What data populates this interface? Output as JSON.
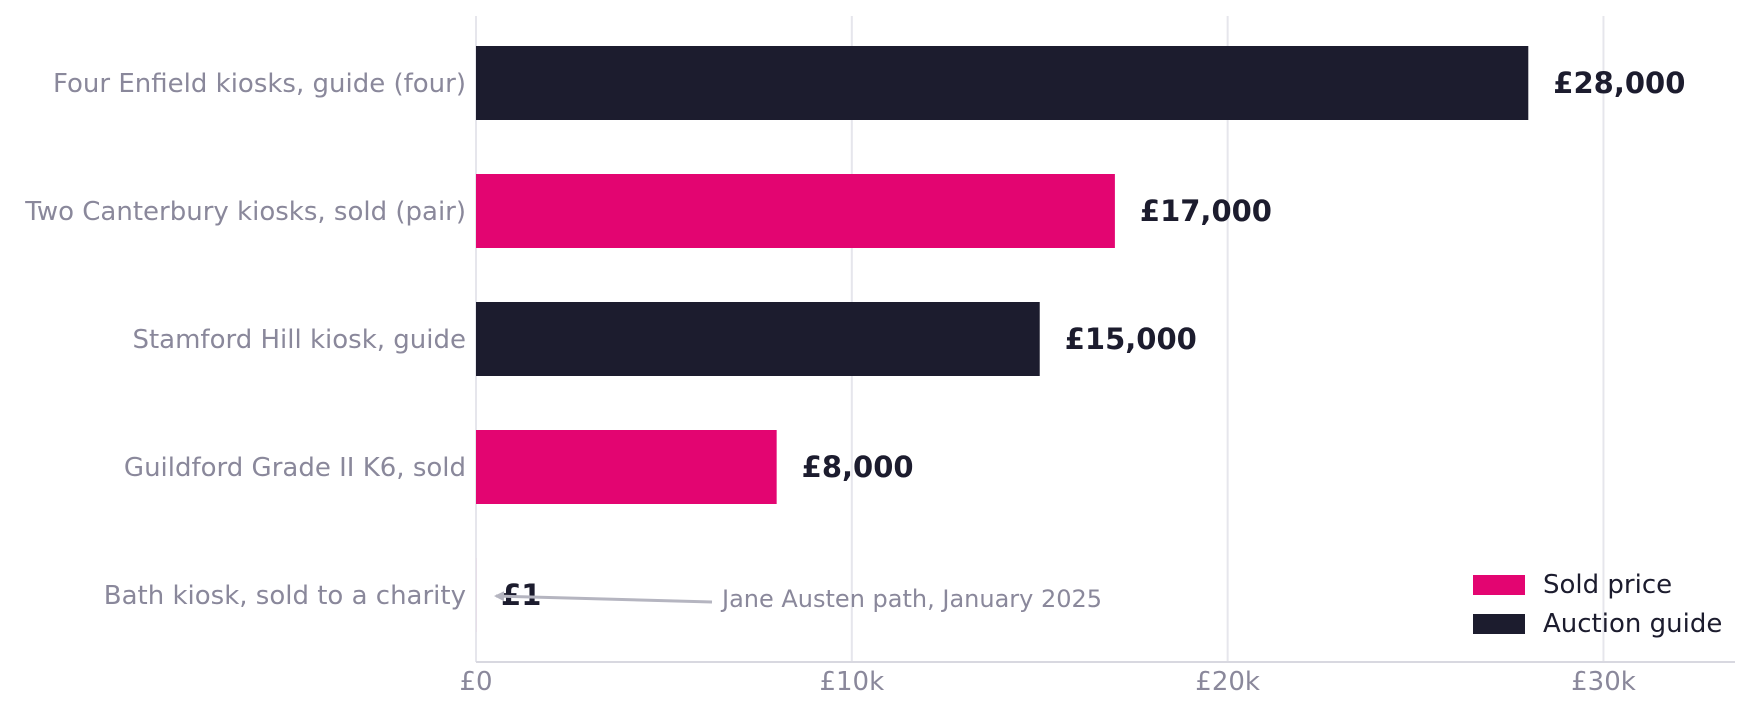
{
  "chart_data": {
    "type": "bar",
    "orientation": "horizontal",
    "categories": [
      "Four Enfield kiosks, guide (four)",
      "Two Canterbury kiosks, sold (pair)",
      "Stamford Hill kiosk, guide",
      "Guildford Grade II K6, sold",
      "Bath kiosk, sold to a charity"
    ],
    "values": [
      28000,
      17000,
      15000,
      8000,
      1
    ],
    "kinds": [
      "guide",
      "sold",
      "guide",
      "sold",
      "sold"
    ],
    "value_labels": [
      "£28,000",
      "£17,000",
      "£15,000",
      "£8,000",
      "£1"
    ],
    "xlim": [
      0,
      33500
    ],
    "xticks": [
      0,
      10000,
      20000,
      30000
    ],
    "xtick_labels": [
      "£0",
      "£10k",
      "£20k",
      "£30k"
    ],
    "grid": "vertical",
    "legend": {
      "position": "bottom-right",
      "entries": [
        {
          "name": "Sold price",
          "kind": "sold"
        },
        {
          "name": "Auction guide",
          "kind": "guide"
        }
      ]
    },
    "annotation": {
      "text": "Jane Austen path, January 2025",
      "target_category": "Bath kiosk, sold to a charity"
    },
    "colors": {
      "sold": "#e30571",
      "guide": "#1c1c2e",
      "grid": "#e6e6ec",
      "axis_text": "#8a889b",
      "arrow": "#b5b5c0"
    },
    "title": "",
    "xlabel": "",
    "ylabel": ""
  }
}
